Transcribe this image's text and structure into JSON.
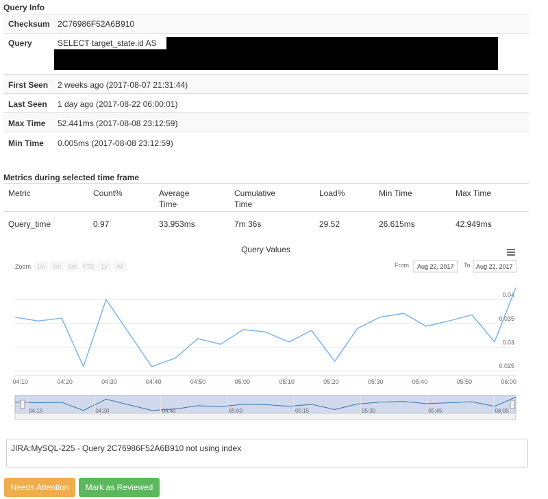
{
  "query_info": {
    "title": "Query Info",
    "rows": [
      [
        "Checksum",
        "2C76986F52A6B910"
      ],
      [
        "Query",
        "SELECT target_state.id AS"
      ],
      [
        "First Seen",
        "2 weeks ago (2017-08-07 21:31:44)"
      ],
      [
        "Last Seen",
        "1 day ago (2017-08-22 06:00:01)"
      ],
      [
        "Max Time",
        "52.441ms (2017-08-08 23:12:59)"
      ],
      [
        "Min Time",
        "0.005ms (2017-08-08 23:12:59)"
      ]
    ]
  },
  "metrics": {
    "title": "Metrics during selected time frame",
    "headers": [
      "Metric",
      "Count%",
      "Average Time",
      "Cumulative Time",
      "Load%",
      "Min Time",
      "Max Time"
    ],
    "rows": [
      [
        "Query_time",
        "0.97",
        "33.953ms",
        "7m 36s",
        "29.52",
        "26.615ms",
        "42.949ms"
      ]
    ]
  },
  "chart_data": {
    "type": "line",
    "title": "Query Values",
    "zoom_label": "Zoom",
    "zoom_buttons": [
      "1m",
      "3m",
      "6m",
      "YTD",
      "1y",
      "All"
    ],
    "from_label": "From",
    "from": "Aug 22, 2017",
    "to_label": "To",
    "to": "Aug 22, 2017",
    "x": [
      248.8,
      254.0,
      259.3,
      264.2,
      269.3,
      279.6,
      284.9,
      290.0,
      295.1,
      300.2,
      305.1,
      310.5,
      315.6,
      320.8,
      325.9,
      331.0,
      336.3,
      341.4,
      346.5,
      351.7,
      356.8,
      361.6
    ],
    "series": [
      {
        "color": "#7cb5ec",
        "values": [
          0.0363,
          0.0355,
          0.0361,
          0.0259,
          0.04,
          0.0259,
          0.0277,
          0.0318,
          0.0306,
          0.0337,
          0.0332,
          0.0311,
          0.0335,
          0.027,
          0.0339,
          0.0363,
          0.0371,
          0.0344,
          0.0355,
          0.0368,
          0.0311,
          0.0425
        ]
      }
    ],
    "xlim": [
      248.8,
      361.6
    ],
    "ylim": [
      0.024,
      0.0429
    ],
    "xticks": [
      {
        "value": 250,
        "label": "04:10"
      },
      {
        "value": 260,
        "label": "04:20"
      },
      {
        "value": 270,
        "label": "04:30"
      },
      {
        "value": 280,
        "label": "04:40"
      },
      {
        "value": 290,
        "label": "04:50"
      },
      {
        "value": 300,
        "label": "05:00"
      },
      {
        "value": 310,
        "label": "05:10"
      },
      {
        "value": 320,
        "label": "05:20"
      },
      {
        "value": 330,
        "label": "05:30"
      },
      {
        "value": 340,
        "label": "05:40"
      },
      {
        "value": 350,
        "label": "05:50"
      },
      {
        "value": 360,
        "label": "06:00"
      }
    ],
    "yticks": [
      0.025,
      0.03,
      0.035,
      0.04
    ],
    "navigator_xticks": [
      {
        "value": 255,
        "label": "04:15"
      },
      {
        "value": 270,
        "label": "04:30"
      },
      {
        "value": 285,
        "label": "04:45"
      },
      {
        "value": 300,
        "label": "05:00"
      },
      {
        "value": 315,
        "label": "05:15"
      },
      {
        "value": 330,
        "label": "05:30"
      },
      {
        "value": 345,
        "label": "05:45"
      },
      {
        "value": 360,
        "label": "06:00"
      }
    ],
    "grid": true
  },
  "note": "JIRA:MySQL-225 - Query 2C76986F52A6B910 not using index",
  "buttons": [
    "Needs Attention",
    "Mark as Reviewed"
  ]
}
